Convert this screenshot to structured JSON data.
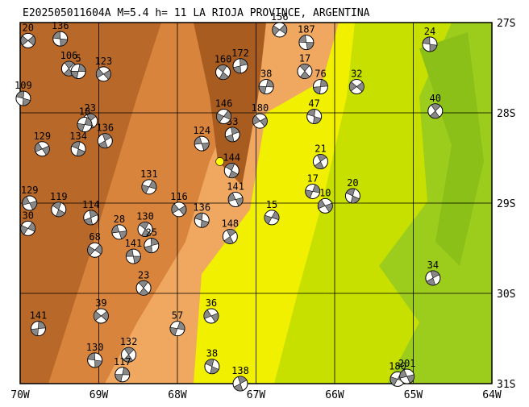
{
  "title": "E202505011604A M=5.4 h= 11 LA RIOJA PROVINCE, ARGENTINA",
  "map": {
    "lonlim": [
      -70,
      -64
    ],
    "latlim": [
      -31,
      -27
    ],
    "lonticks": [
      {
        "value": -70,
        "label": "70W"
      },
      {
        "value": -69,
        "label": "69W"
      },
      {
        "value": -68,
        "label": "68W"
      },
      {
        "value": -67,
        "label": "67W"
      },
      {
        "value": -66,
        "label": "66W"
      },
      {
        "value": -65,
        "label": "65W"
      },
      {
        "value": -64,
        "label": "64W"
      }
    ],
    "latticks": [
      {
        "value": -27,
        "label": "27S"
      },
      {
        "value": -28,
        "label": "28S"
      },
      {
        "value": -29,
        "label": "29S"
      },
      {
        "value": -30,
        "label": "30S"
      },
      {
        "value": -31,
        "label": "31S"
      }
    ],
    "grid": true,
    "epicenter": {
      "lon": -67.46,
      "lat": -28.54,
      "color": "#ffff00"
    },
    "events": [
      {
        "label": "20",
        "lon": -69.9,
        "lat": -27.2
      },
      {
        "label": "136",
        "lon": -69.49,
        "lat": -27.18
      },
      {
        "label": "106",
        "lon": -69.38,
        "lat": -27.51
      },
      {
        "label": "5",
        "lon": -69.26,
        "lat": -27.54
      },
      {
        "label": "123",
        "lon": -68.94,
        "lat": -27.57
      },
      {
        "label": "109",
        "lon": -69.96,
        "lat": -27.84
      },
      {
        "label": "23",
        "lon": -69.11,
        "lat": -28.09
      },
      {
        "label": "18",
        "lon": -69.18,
        "lat": -28.13
      },
      {
        "label": "129",
        "lon": -69.72,
        "lat": -28.4
      },
      {
        "label": "134",
        "lon": -69.26,
        "lat": -28.4
      },
      {
        "label": "136",
        "lon": -68.92,
        "lat": -28.31
      },
      {
        "label": "131",
        "lon": -68.36,
        "lat": -28.82
      },
      {
        "label": "129",
        "lon": -69.88,
        "lat": -29.0
      },
      {
        "label": "119",
        "lon": -69.51,
        "lat": -29.07
      },
      {
        "label": "114",
        "lon": -69.1,
        "lat": -29.16
      },
      {
        "label": "30",
        "lon": -69.9,
        "lat": -29.28
      },
      {
        "label": "28",
        "lon": -68.74,
        "lat": -29.32
      },
      {
        "label": "130",
        "lon": -68.41,
        "lat": -29.29
      },
      {
        "label": "25",
        "lon": -68.33,
        "lat": -29.47
      },
      {
        "label": "68",
        "lon": -69.05,
        "lat": -29.52
      },
      {
        "label": "141",
        "lon": -68.56,
        "lat": -29.59
      },
      {
        "label": "23",
        "lon": -68.43,
        "lat": -29.94
      },
      {
        "label": "141",
        "lon": -69.77,
        "lat": -30.39
      },
      {
        "label": "39",
        "lon": -68.97,
        "lat": -30.25
      },
      {
        "label": "130",
        "lon": -69.05,
        "lat": -30.74
      },
      {
        "label": "132",
        "lon": -68.62,
        "lat": -30.68
      },
      {
        "label": "117",
        "lon": -68.7,
        "lat": -30.9
      },
      {
        "label": "116",
        "lon": -67.98,
        "lat": -29.07
      },
      {
        "label": "136",
        "lon": -67.69,
        "lat": -29.19
      },
      {
        "label": "148",
        "lon": -67.33,
        "lat": -29.37
      },
      {
        "label": "57",
        "lon": -68.0,
        "lat": -30.39
      },
      {
        "label": "36",
        "lon": -67.57,
        "lat": -30.25
      },
      {
        "label": "38",
        "lon": -67.56,
        "lat": -30.81
      },
      {
        "label": "138",
        "lon": -67.2,
        "lat": -31.0
      },
      {
        "label": "15",
        "lon": -66.8,
        "lat": -29.16
      },
      {
        "label": "141",
        "lon": -67.26,
        "lat": -28.96
      },
      {
        "label": "144",
        "lon": -67.31,
        "lat": -28.64
      },
      {
        "label": "53",
        "lon": -67.3,
        "lat": -28.24
      },
      {
        "label": "146",
        "lon": -67.41,
        "lat": -28.04
      },
      {
        "label": "124",
        "lon": -67.69,
        "lat": -28.34
      },
      {
        "label": "160",
        "lon": -67.42,
        "lat": -27.55
      },
      {
        "label": "172",
        "lon": -67.2,
        "lat": -27.48
      },
      {
        "label": "156",
        "lon": -66.7,
        "lat": -27.08
      },
      {
        "label": "187",
        "lon": -66.36,
        "lat": -27.22
      },
      {
        "label": "17",
        "lon": -66.38,
        "lat": -27.54
      },
      {
        "label": "76",
        "lon": -66.18,
        "lat": -27.71
      },
      {
        "label": "32",
        "lon": -65.72,
        "lat": -27.71
      },
      {
        "label": "24",
        "lon": -64.79,
        "lat": -27.24
      },
      {
        "label": "40",
        "lon": -64.72,
        "lat": -27.98
      },
      {
        "label": "38",
        "lon": -66.87,
        "lat": -27.71
      },
      {
        "label": "180",
        "lon": -66.95,
        "lat": -28.09
      },
      {
        "label": "47",
        "lon": -66.26,
        "lat": -28.04
      },
      {
        "label": "21",
        "lon": -66.18,
        "lat": -28.54
      },
      {
        "label": "17",
        "lon": -66.28,
        "lat": -28.87
      },
      {
        "label": "10",
        "lon": -66.12,
        "lat": -29.03
      },
      {
        "label": "20",
        "lon": -65.77,
        "lat": -28.92
      },
      {
        "label": "34",
        "lon": -64.75,
        "lat": -29.83
      },
      {
        "label": "180",
        "lon": -65.2,
        "lat": -30.95
      },
      {
        "label": "201",
        "lon": -65.08,
        "lat": -30.92
      }
    ]
  }
}
